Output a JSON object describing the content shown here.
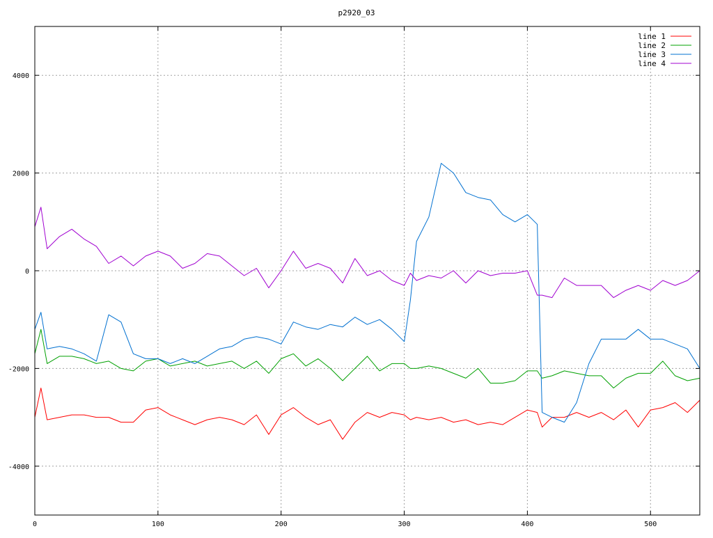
{
  "chart_data": {
    "type": "line",
    "title": "p2920_03",
    "xlabel": "",
    "ylabel": "",
    "xlim": [
      0,
      540
    ],
    "ylim": [
      -5000,
      5000
    ],
    "x_ticks": [
      0,
      100,
      200,
      300,
      400,
      500
    ],
    "y_ticks": [
      -4000,
      -2000,
      0,
      2000,
      4000
    ],
    "x_tick_labels": [
      "0",
      "100",
      "200",
      "300",
      "400",
      "500"
    ],
    "y_tick_labels": [
      "-4000",
      "-2000",
      "0",
      "2000",
      "4000"
    ],
    "grid": true,
    "legend_position": "top-right",
    "x": [
      0,
      5,
      10,
      20,
      30,
      40,
      50,
      60,
      70,
      80,
      90,
      100,
      110,
      120,
      130,
      140,
      150,
      160,
      170,
      180,
      190,
      200,
      210,
      220,
      230,
      240,
      250,
      260,
      270,
      280,
      290,
      300,
      305,
      310,
      320,
      330,
      340,
      350,
      360,
      370,
      380,
      390,
      400,
      408,
      412,
      420,
      430,
      440,
      450,
      460,
      470,
      480,
      490,
      500,
      510,
      520,
      530,
      540
    ],
    "series": [
      {
        "name": "line 1",
        "color": "#ff0000",
        "values": [
          -3000,
          -2400,
          -3050,
          -3000,
          -2950,
          -2950,
          -3000,
          -3000,
          -3100,
          -3100,
          -2850,
          -2800,
          -2950,
          -3050,
          -3150,
          -3050,
          -3000,
          -3050,
          -3150,
          -2950,
          -3350,
          -2950,
          -2800,
          -3000,
          -3150,
          -3050,
          -3450,
          -3100,
          -2900,
          -3000,
          -2900,
          -2950,
          -3050,
          -3000,
          -3050,
          -3000,
          -3100,
          -3050,
          -3150,
          -3100,
          -3150,
          -3000,
          -2850,
          -2900,
          -3200,
          -3000,
          -3000,
          -2900,
          -3000,
          -2900,
          -3050,
          -2850,
          -3200,
          -2850,
          -2800,
          -2700,
          -2900,
          -2650
        ]
      },
      {
        "name": "line 2",
        "color": "#00a000",
        "values": [
          -1700,
          -1200,
          -1900,
          -1750,
          -1750,
          -1800,
          -1900,
          -1850,
          -2000,
          -2050,
          -1850,
          -1800,
          -1950,
          -1900,
          -1850,
          -1950,
          -1900,
          -1850,
          -2000,
          -1850,
          -2100,
          -1800,
          -1700,
          -1950,
          -1800,
          -2000,
          -2250,
          -2000,
          -1750,
          -2050,
          -1900,
          -1900,
          -2000,
          -2000,
          -1950,
          -2000,
          -2100,
          -2200,
          -2000,
          -2300,
          -2300,
          -2250,
          -2050,
          -2050,
          -2200,
          -2150,
          -2050,
          -2100,
          -2150,
          -2150,
          -2400,
          -2200,
          -2100,
          -2100,
          -1850,
          -2150,
          -2250,
          -2200
        ]
      },
      {
        "name": "line 3",
        "color": "#0070d0",
        "values": [
          -1200,
          -850,
          -1600,
          -1550,
          -1600,
          -1700,
          -1850,
          -900,
          -1050,
          -1700,
          -1800,
          -1800,
          -1900,
          -1800,
          -1900,
          -1750,
          -1600,
          -1550,
          -1400,
          -1350,
          -1400,
          -1500,
          -1050,
          -1150,
          -1200,
          -1100,
          -1150,
          -950,
          -1100,
          -1000,
          -1200,
          -1450,
          -600,
          600,
          1100,
          2200,
          2000,
          1600,
          1500,
          1450,
          1150,
          1000,
          1150,
          950,
          -2900,
          -3000,
          -3100,
          -2700,
          -1900,
          -1400,
          -1400,
          -1400,
          -1200,
          -1400,
          -1400,
          -1500,
          -1600,
          -2000
        ]
      },
      {
        "name": "line 4",
        "color": "#a000d0",
        "values": [
          900,
          1300,
          450,
          700,
          850,
          650,
          500,
          150,
          300,
          100,
          300,
          400,
          300,
          50,
          150,
          350,
          300,
          100,
          -100,
          50,
          -350,
          0,
          400,
          50,
          150,
          50,
          -250,
          250,
          -100,
          0,
          -200,
          -300,
          -50,
          -200,
          -100,
          -150,
          0,
          -250,
          0,
          -100,
          -50,
          -50,
          0,
          -500,
          -500,
          -550,
          -150,
          -300,
          -300,
          -300,
          -550,
          -400,
          -300,
          -400,
          -200,
          -300,
          -200,
          0
        ]
      }
    ]
  }
}
